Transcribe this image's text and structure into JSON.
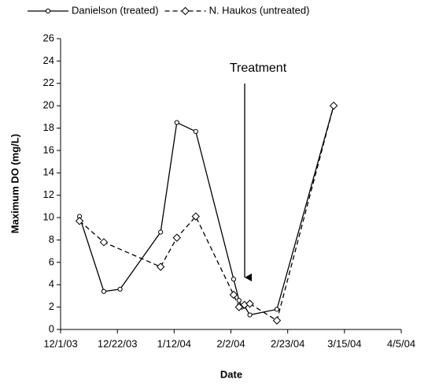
{
  "chart_data": {
    "type": "line",
    "x_label": "Date",
    "y_label": "Maximum DO (mg/L)",
    "annotation": "Treatment",
    "legend": "top",
    "xlim": [
      "12/1/03",
      "4/5/04"
    ],
    "xticks": [
      "12/1/03",
      "12/22/03",
      "1/12/04",
      "2/2/04",
      "2/23/04",
      "3/15/04",
      "4/5/04"
    ],
    "ylim": [
      0,
      26
    ],
    "yticks": [
      0,
      2,
      4,
      6,
      8,
      10,
      12,
      14,
      16,
      18,
      20,
      22,
      24,
      26
    ],
    "series": [
      {
        "name": "Danielson (treated)",
        "color": "#000000",
        "marker": "circle",
        "dashed": false,
        "x": [
          "12/8/03",
          "12/17/03",
          "12/23/03",
          "1/7/04",
          "1/13/04",
          "1/20/04",
          "2/3/04",
          "2/5/04",
          "2/6/04",
          "2/7/04",
          "2/9/04",
          "2/19/04",
          "3/11/04"
        ],
        "values": [
          10.1,
          3.4,
          3.6,
          8.7,
          18.5,
          17.7,
          4.5,
          2.6,
          2.0,
          2.1,
          1.3,
          1.8,
          20.0
        ]
      },
      {
        "name": "N. Haukos (untreated)",
        "color": "#000000",
        "marker": "diamond",
        "dashed": true,
        "x": [
          "12/8/03",
          "12/17/03",
          "1/7/04",
          "1/13/04",
          "1/20/04",
          "2/3/04",
          "2/5/04",
          "2/7/04",
          "2/9/04",
          "2/19/04",
          "3/11/04"
        ],
        "values": [
          9.7,
          7.8,
          5.6,
          8.2,
          10.1,
          3.1,
          2.0,
          2.2,
          2.3,
          0.8,
          20.0
        ]
      }
    ]
  }
}
